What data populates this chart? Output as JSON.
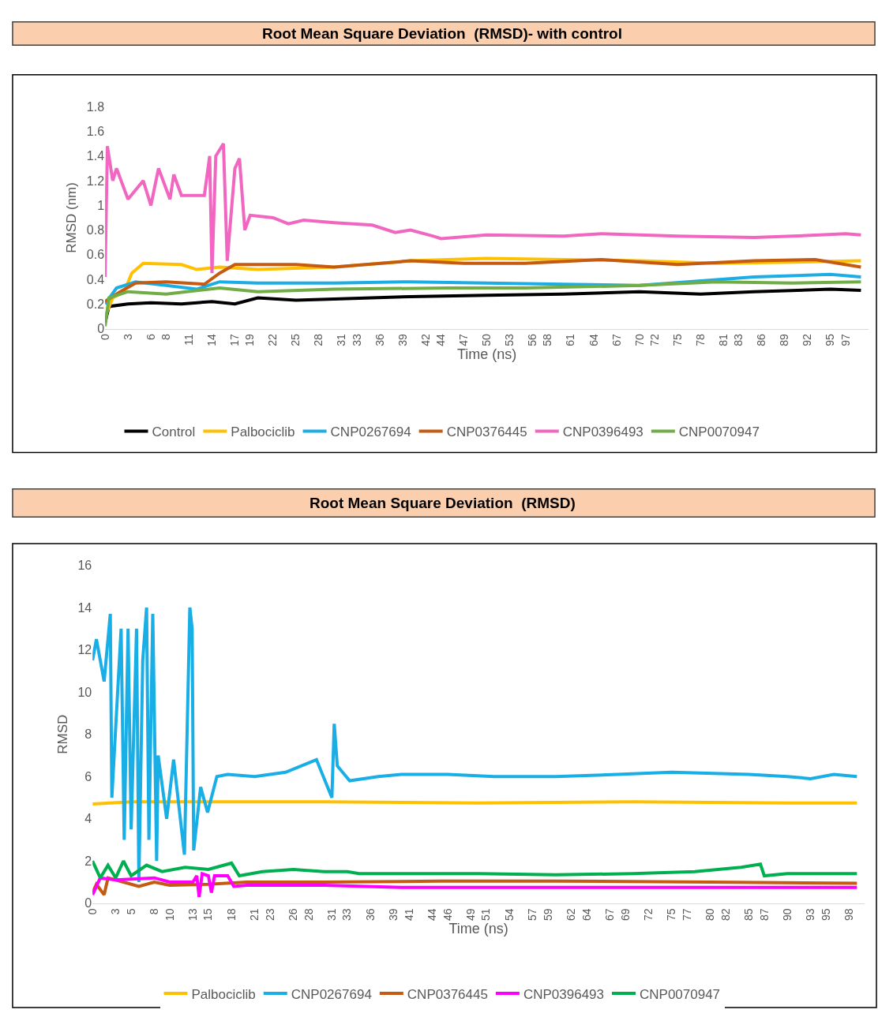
{
  "chart_data": [
    {
      "type": "line",
      "title": "Root Mean Square Deviation  (RMSD)- with control",
      "xlabel": "Time (ns)",
      "ylabel": "RMSD (nm)",
      "xlim": [
        0,
        100
      ],
      "xticks": [
        0,
        3,
        6,
        8,
        11,
        14,
        17,
        19,
        22,
        25,
        28,
        31,
        33,
        36,
        39,
        42,
        44,
        47,
        50,
        53,
        56,
        58,
        61,
        64,
        67,
        70,
        72,
        75,
        78,
        81,
        83,
        86,
        89,
        92,
        95,
        97
      ],
      "ylim": [
        0,
        1.8
      ],
      "yticks": [
        0,
        0.2,
        0.4,
        0.6,
        0.8,
        1,
        1.2,
        1.4,
        1.6,
        1.8
      ],
      "grid": false,
      "legend": "bottom",
      "line_style": "solid",
      "marker": "none",
      "series": [
        {
          "name": "Control",
          "color": "#000000",
          "x": [
            0,
            0.5,
            3,
            6,
            10,
            14,
            17,
            20,
            25,
            30,
            40,
            50,
            60,
            70,
            78,
            85,
            95,
            99
          ],
          "values": [
            0.05,
            0.18,
            0.2,
            0.21,
            0.2,
            0.22,
            0.2,
            0.25,
            0.23,
            0.24,
            0.26,
            0.27,
            0.28,
            0.3,
            0.28,
            0.3,
            0.32,
            0.31
          ]
        },
        {
          "name": "Palbociclib",
          "color": "#ffc000",
          "x": [
            0,
            1,
            2.5,
            3.5,
            5,
            10,
            12,
            15,
            20,
            30,
            40,
            50,
            60,
            70,
            80,
            90,
            99
          ],
          "values": [
            0.1,
            0.25,
            0.3,
            0.45,
            0.53,
            0.52,
            0.48,
            0.5,
            0.48,
            0.5,
            0.55,
            0.57,
            0.56,
            0.55,
            0.53,
            0.54,
            0.55
          ]
        },
        {
          "name": "CNP0267694",
          "color": "#1cade4",
          "x": [
            0,
            1.5,
            4,
            8,
            12,
            15,
            20,
            30,
            40,
            50,
            60,
            70,
            85,
            95,
            99
          ],
          "values": [
            0.2,
            0.33,
            0.38,
            0.35,
            0.32,
            0.38,
            0.37,
            0.37,
            0.38,
            0.37,
            0.36,
            0.35,
            0.42,
            0.44,
            0.42
          ]
        },
        {
          "name": "CNP0376445",
          "color": "#c55a11",
          "x": [
            0,
            2,
            4,
            8,
            13,
            15,
            17,
            25,
            30,
            40,
            47,
            55,
            65,
            75,
            85,
            93,
            99
          ],
          "values": [
            0.22,
            0.3,
            0.37,
            0.38,
            0.36,
            0.45,
            0.52,
            0.52,
            0.5,
            0.55,
            0.53,
            0.53,
            0.56,
            0.52,
            0.55,
            0.56,
            0.5
          ]
        },
        {
          "name": "CNP0396493",
          "color": "#f066c0",
          "x": [
            0,
            0.3,
            1,
            1.5,
            3,
            5,
            6,
            7,
            8.5,
            9,
            10,
            13,
            13.7,
            14,
            14.5,
            15.5,
            16,
            17,
            17.6,
            18.3,
            19,
            22,
            24,
            26,
            30,
            35,
            38,
            40,
            43,
            44,
            50,
            60,
            65,
            75,
            85,
            90,
            97,
            99
          ],
          "values": [
            0.42,
            1.48,
            1.2,
            1.3,
            1.05,
            1.2,
            1.0,
            1.3,
            1.05,
            1.25,
            1.08,
            1.08,
            1.4,
            0.45,
            1.4,
            1.5,
            0.55,
            1.3,
            1.38,
            0.8,
            0.92,
            0.9,
            0.85,
            0.88,
            0.86,
            0.84,
            0.78,
            0.8,
            0.75,
            0.73,
            0.76,
            0.75,
            0.77,
            0.75,
            0.74,
            0.75,
            0.77,
            0.76
          ]
        },
        {
          "name": "CNP0070947",
          "color": "#70ad47",
          "x": [
            0,
            0.5,
            3,
            8,
            15,
            20,
            30,
            45,
            55,
            70,
            80,
            90,
            99
          ],
          "values": [
            0.02,
            0.25,
            0.3,
            0.28,
            0.33,
            0.3,
            0.32,
            0.33,
            0.33,
            0.35,
            0.38,
            0.37,
            0.38
          ]
        }
      ]
    },
    {
      "type": "line",
      "title": "Root Mean Square Deviation  (RMSD)",
      "xlabel": "Time (ns)",
      "ylabel": "RMSD",
      "xlim": [
        0,
        100
      ],
      "xticks": [
        0,
        3,
        5,
        8,
        10,
        13,
        15,
        18,
        21,
        23,
        26,
        28,
        31,
        33,
        36,
        39,
        41,
        44,
        46,
        49,
        51,
        54,
        57,
        59,
        62,
        64,
        67,
        69,
        72,
        75,
        77,
        80,
        82,
        85,
        87,
        90,
        93,
        95,
        98
      ],
      "ylim": [
        0,
        16
      ],
      "yticks": [
        0,
        2,
        4,
        6,
        8,
        10,
        12,
        14,
        16
      ],
      "grid": false,
      "legend": "bottom",
      "line_style": "solid",
      "marker": "none",
      "series": [
        {
          "name": "Palbociclib",
          "color": "#ffc000",
          "x": [
            0,
            5,
            15,
            30,
            50,
            70,
            90,
            99
          ],
          "values": [
            4.7,
            4.8,
            4.8,
            4.8,
            4.75,
            4.8,
            4.75,
            4.75
          ]
        },
        {
          "name": "CNP0267694",
          "color": "#1aaee6",
          "x": [
            0,
            0.5,
            1.5,
            2.3,
            2.5,
            3.7,
            4.1,
            4.6,
            5,
            5.7,
            6,
            6.5,
            7,
            7.3,
            7.8,
            8.3,
            8.5,
            9.6,
            10.5,
            11.9,
            12.6,
            12.9,
            13.1,
            14,
            14.9,
            16.1,
            17.5,
            21,
            25,
            29,
            31,
            31.3,
            31.7,
            33.3,
            37,
            40,
            46,
            52,
            60,
            68,
            75,
            85,
            90,
            93,
            96,
            99
          ],
          "values": [
            11.5,
            12.5,
            10.5,
            13.7,
            5,
            13,
            3,
            13,
            3.5,
            13,
            1,
            11.5,
            14,
            3,
            13.7,
            2,
            7,
            4,
            6.8,
            2.3,
            14,
            13,
            2.5,
            5.5,
            4.3,
            6,
            6.1,
            6,
            6.2,
            6.8,
            5,
            8.5,
            6.5,
            5.8,
            6,
            6.1,
            6.1,
            6,
            6,
            6.1,
            6.2,
            6.1,
            6,
            5.9,
            6.1,
            6
          ]
        },
        {
          "name": "CNP0376445",
          "color": "#c55a11",
          "x": [
            0,
            0.5,
            1.5,
            2,
            4,
            6,
            8,
            10,
            15,
            20,
            30,
            45,
            60,
            80,
            99
          ],
          "values": [
            0.5,
            0.9,
            0.4,
            1.2,
            1,
            0.8,
            1,
            0.85,
            0.9,
            1,
            1,
            1.05,
            1.05,
            1,
            0.95
          ]
        },
        {
          "name": "CNP0396493",
          "color": "#ff00ff",
          "x": [
            0,
            1,
            3,
            8,
            10,
            13,
            13.5,
            13.8,
            14.2,
            15,
            15.4,
            15.8,
            17.5,
            18.3,
            20,
            30,
            40,
            60,
            80,
            99
          ],
          "values": [
            0.4,
            1.2,
            1.1,
            1.2,
            1,
            1,
            1.3,
            0.3,
            1.4,
            1.3,
            0.5,
            1.3,
            1.3,
            0.8,
            0.85,
            0.85,
            0.75,
            0.75,
            0.75,
            0.75
          ]
        },
        {
          "name": "CNP0070947",
          "color": "#00b050",
          "x": [
            0,
            1,
            2,
            3,
            4,
            5,
            7,
            9,
            12,
            15,
            18,
            19,
            22,
            26,
            30,
            33,
            34.5,
            50,
            60,
            70,
            78,
            84,
            86.5,
            87,
            90,
            99
          ],
          "values": [
            2,
            1.2,
            1.8,
            1.2,
            2,
            1.3,
            1.8,
            1.5,
            1.7,
            1.6,
            1.9,
            1.3,
            1.5,
            1.6,
            1.5,
            1.5,
            1.4,
            1.4,
            1.35,
            1.4,
            1.5,
            1.7,
            1.85,
            1.3,
            1.4,
            1.4
          ]
        }
      ]
    }
  ]
}
